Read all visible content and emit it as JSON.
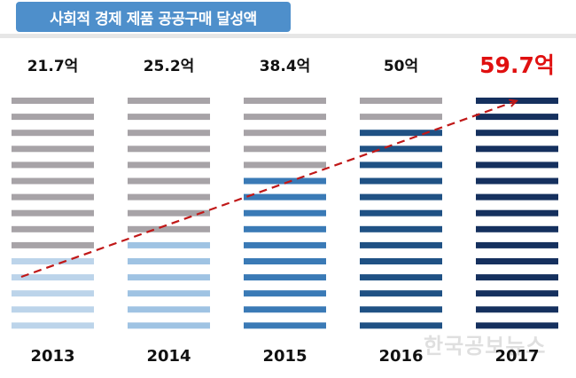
{
  "header": {
    "title": "사회적 경제 제품 공공구매 달성액",
    "watermark": "한국공보뉴스"
  },
  "colors": {
    "title_bg": "#4e8fcb",
    "empty_bar": "#a7a3a7",
    "highlight_value": "#e01010",
    "trend_arrow": "#c01818",
    "fill_by_year": [
      "#bcd4ea",
      "#9fc3e3",
      "#3a7ab6",
      "#1f5184",
      "#15305e"
    ]
  },
  "chart_data": {
    "type": "bar",
    "style": "stacked-segment-gauge",
    "segments_per_column": 15,
    "categories": [
      "2013",
      "2014",
      "2015",
      "2016",
      "2017"
    ],
    "values": [
      21.7,
      25.2,
      38.4,
      50,
      59.7
    ],
    "value_labels": [
      "21.7억",
      "25.2억",
      "38.4억",
      "50억",
      "59.7억"
    ],
    "unit": "억",
    "max_value": 59.7,
    "highlight_index": 4,
    "trend_arrow": {
      "from": "2013",
      "to": "2017",
      "style": "dashed"
    },
    "title": "사회적 경제 제품 공공구매 달성액",
    "xlabel": "",
    "ylabel": ""
  }
}
